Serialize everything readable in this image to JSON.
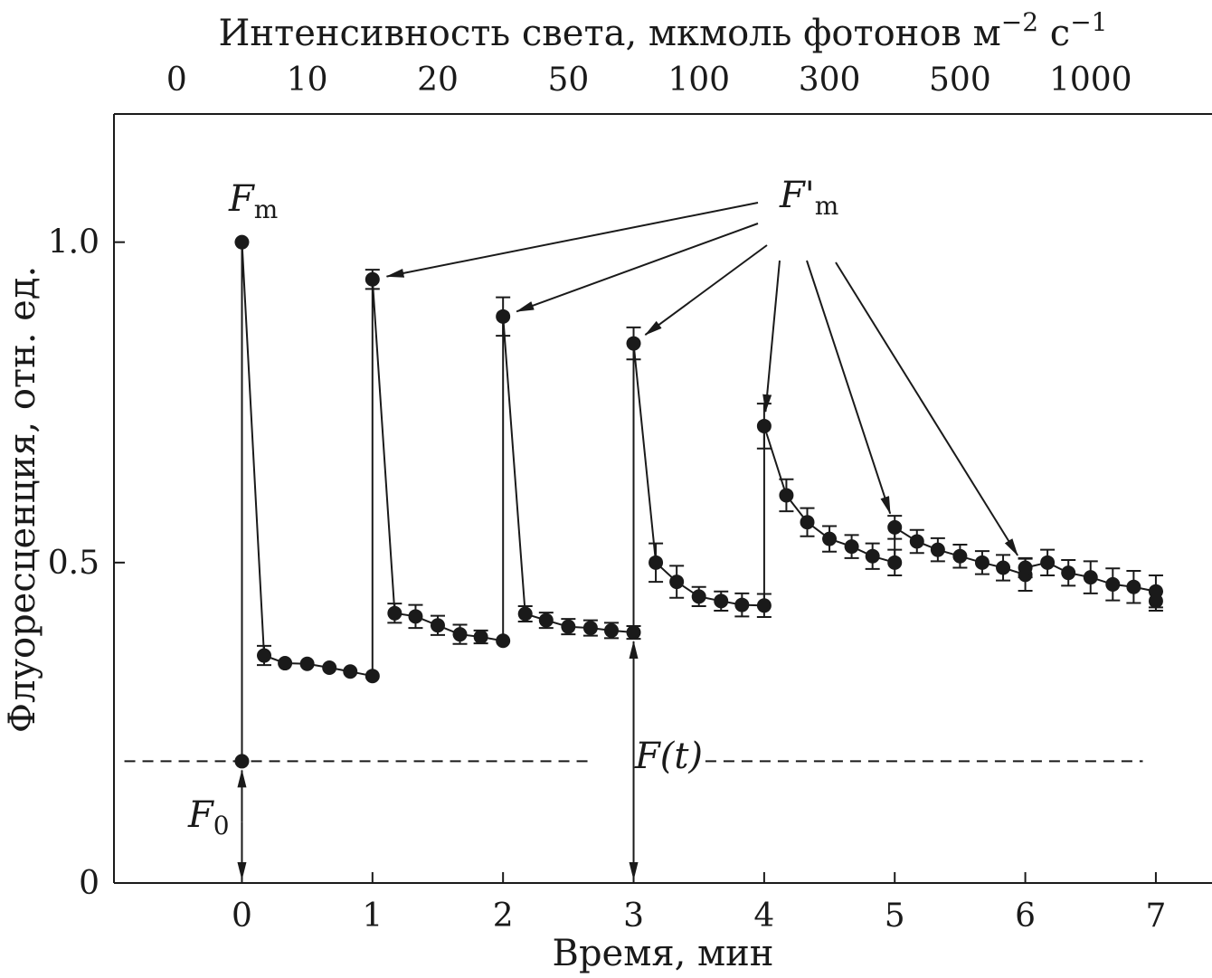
{
  "chart_data": {
    "type": "line",
    "xlabel": "Время, мин",
    "ylabel": "Флуоресценция, отн. ед.",
    "top_axis_title": "Интенсивность света, мкмоль фотонов м",
    "top_axis_unit_sup1": "−2",
    "top_axis_unit_mid": " с",
    "top_axis_unit_sup2": "−1",
    "top_axis_ticks": [
      {
        "label": "0",
        "x": -0.5
      },
      {
        "label": "10",
        "x": 0.5
      },
      {
        "label": "20",
        "x": 1.5
      },
      {
        "label": "50",
        "x": 2.5
      },
      {
        "label": "100",
        "x": 3.5
      },
      {
        "label": "300",
        "x": 4.5
      },
      {
        "label": "500",
        "x": 5.5
      },
      {
        "label": "1000",
        "x": 6.5
      }
    ],
    "xlim": [
      -0.98,
      7.43
    ],
    "ylim": [
      0,
      1.2
    ],
    "x_ticks": [
      0,
      1,
      2,
      3,
      4,
      5,
      6,
      7
    ],
    "x_tick_labels": [
      "0",
      "1",
      "2",
      "3",
      "4",
      "5",
      "6",
      "7"
    ],
    "y_ticks": [
      0,
      0.5,
      1.0
    ],
    "y_tick_labels": [
      "0",
      "0.5",
      "1.0"
    ],
    "grid": false,
    "series": [
      {
        "points": [
          {
            "x": 0.0,
            "y": 0.19
          },
          {
            "x": 0.0,
            "y": 1.0
          },
          {
            "x": 0.17,
            "y": 0.355,
            "err": 0.015
          },
          {
            "x": 0.33,
            "y": 0.343
          },
          {
            "x": 0.5,
            "y": 0.342
          },
          {
            "x": 0.67,
            "y": 0.336
          },
          {
            "x": 0.83,
            "y": 0.33
          },
          {
            "x": 1.0,
            "y": 0.323
          },
          {
            "x": 1.0,
            "y": 0.942,
            "err": 0.015
          },
          {
            "x": 1.17,
            "y": 0.421,
            "err": 0.015
          },
          {
            "x": 1.33,
            "y": 0.416,
            "err": 0.018
          },
          {
            "x": 1.5,
            "y": 0.402,
            "err": 0.015
          },
          {
            "x": 1.67,
            "y": 0.388,
            "err": 0.015
          },
          {
            "x": 1.83,
            "y": 0.384,
            "err": 0.01
          },
          {
            "x": 2.0,
            "y": 0.378
          },
          {
            "x": 2.0,
            "y": 0.884,
            "err": 0.03
          },
          {
            "x": 2.17,
            "y": 0.42,
            "err": 0.012
          },
          {
            "x": 2.33,
            "y": 0.41,
            "err": 0.012
          },
          {
            "x": 2.5,
            "y": 0.4,
            "err": 0.012
          },
          {
            "x": 2.67,
            "y": 0.398,
            "err": 0.012
          },
          {
            "x": 2.83,
            "y": 0.394,
            "err": 0.012
          },
          {
            "x": 3.0,
            "y": 0.391,
            "err": 0.01
          },
          {
            "x": 3.0,
            "y": 0.842,
            "err": 0.025
          },
          {
            "x": 3.17,
            "y": 0.5,
            "err": 0.03
          },
          {
            "x": 3.33,
            "y": 0.47,
            "err": 0.025
          },
          {
            "x": 3.5,
            "y": 0.447,
            "err": 0.015
          },
          {
            "x": 3.67,
            "y": 0.44,
            "err": 0.015
          },
          {
            "x": 3.83,
            "y": 0.434,
            "err": 0.018
          },
          {
            "x": 4.0,
            "y": 0.433,
            "err": 0.018
          },
          {
            "x": 4.0,
            "y": 0.713,
            "err": 0.035
          },
          {
            "x": 4.17,
            "y": 0.605,
            "err": 0.025
          },
          {
            "x": 4.33,
            "y": 0.563,
            "err": 0.022
          },
          {
            "x": 4.5,
            "y": 0.537,
            "err": 0.02
          },
          {
            "x": 4.67,
            "y": 0.525,
            "err": 0.018
          },
          {
            "x": 4.83,
            "y": 0.51,
            "err": 0.02
          },
          {
            "x": 5.0,
            "y": 0.5,
            "err": 0.02
          },
          {
            "x": 5.0,
            "y": 0.555,
            "err": 0.018
          },
          {
            "x": 5.17,
            "y": 0.533,
            "err": 0.018
          },
          {
            "x": 5.33,
            "y": 0.52,
            "err": 0.018
          },
          {
            "x": 5.5,
            "y": 0.51,
            "err": 0.018
          },
          {
            "x": 5.67,
            "y": 0.5,
            "err": 0.018
          },
          {
            "x": 5.83,
            "y": 0.492,
            "err": 0.02
          },
          {
            "x": 6.0,
            "y": 0.481,
            "err": 0.025
          },
          {
            "x": 6.0,
            "y": 0.492,
            "err": 0.015
          },
          {
            "x": 6.17,
            "y": 0.5,
            "err": 0.02
          },
          {
            "x": 6.33,
            "y": 0.484,
            "err": 0.02
          },
          {
            "x": 6.5,
            "y": 0.477,
            "err": 0.025
          },
          {
            "x": 6.67,
            "y": 0.466,
            "err": 0.025
          },
          {
            "x": 6.83,
            "y": 0.462,
            "err": 0.025
          },
          {
            "x": 7.0,
            "y": 0.455,
            "err": 0.025
          },
          {
            "x": 7.0,
            "y": 0.44,
            "err": 0.015
          }
        ]
      }
    ],
    "reference_lines": [
      {
        "y": 0.19,
        "x_from": -0.9,
        "x_to": 2.67
      },
      {
        "y": 0.19,
        "x_from": 3.55,
        "x_to": 6.9
      }
    ],
    "annotations": {
      "fm_label": "F",
      "fm_sub": "m",
      "fm_prime_label": "F'",
      "fm_prime_sub": "m",
      "f0_label": "F",
      "f0_sub": "0",
      "ft_label": "F(t)"
    },
    "fm_prime_arrow_targets": [
      {
        "x": 1.0,
        "y": 0.942
      },
      {
        "x": 2.0,
        "y": 0.884
      },
      {
        "x": 3.0,
        "y": 0.842
      },
      {
        "x": 4.0,
        "y": 0.713
      },
      {
        "x": 5.0,
        "y": 0.555
      },
      {
        "x": 6.0,
        "y": 0.492
      }
    ],
    "vertical_arrows": [
      {
        "x": 0.0,
        "y_from": 0.0,
        "y_to": 0.19
      },
      {
        "x": 3.0,
        "y_from": 0.0,
        "y_to": 0.391
      }
    ]
  }
}
